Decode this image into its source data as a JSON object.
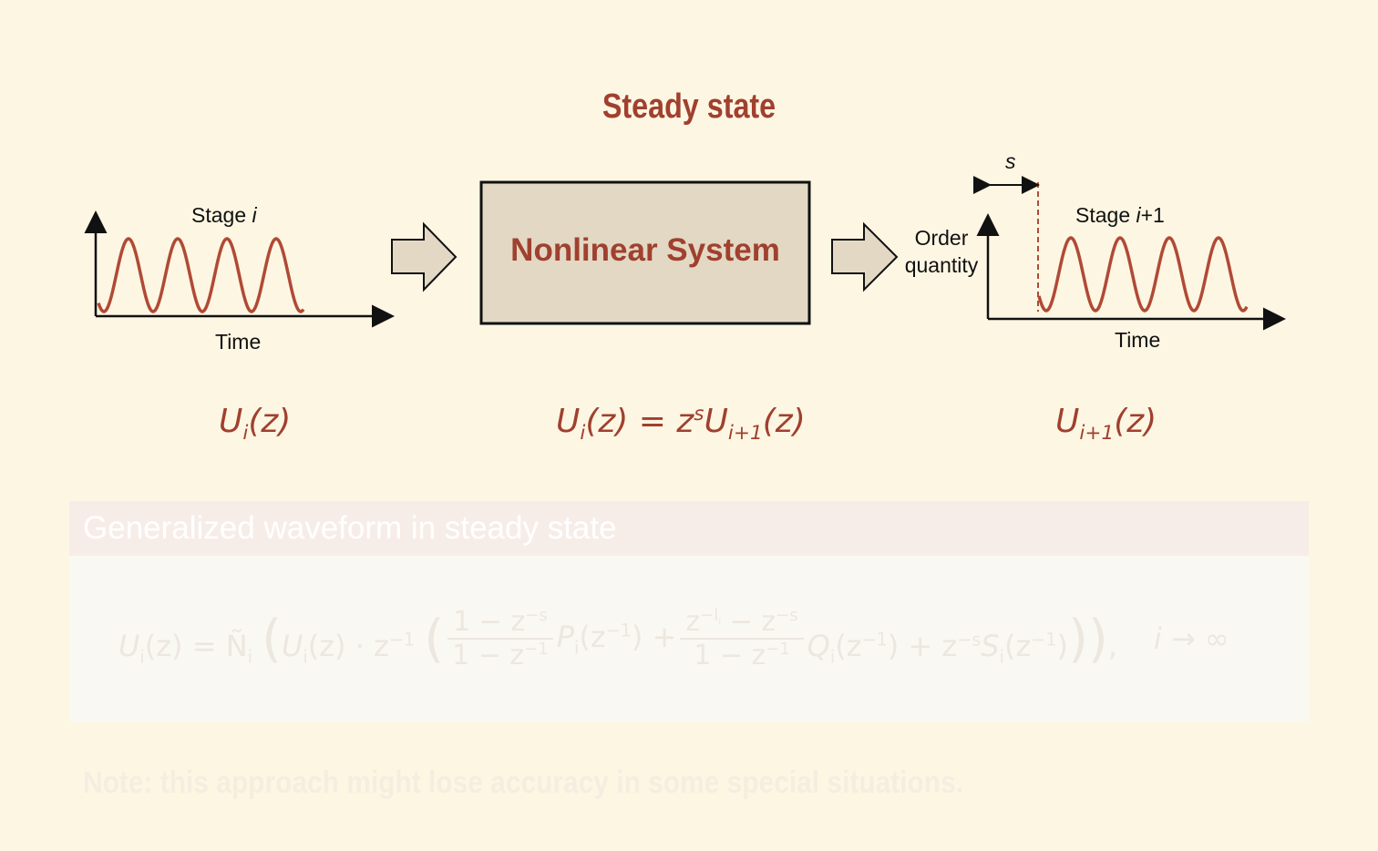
{
  "title": "Steady state",
  "left_stage": {
    "label": [
      "Stage ",
      "i"
    ],
    "axis": "Time"
  },
  "system": "Nonlinear System",
  "right_stage": {
    "label": [
      "Stage ",
      "i",
      "+1"
    ],
    "axis": "Time",
    "y_axis": [
      "Order",
      "quantity"
    ],
    "shift": "s"
  },
  "formulas": {
    "left": [
      "U",
      "i",
      "(z)"
    ],
    "middle": [
      "U",
      "i",
      "(z) = z",
      "s",
      "U",
      "i+1",
      "(z)"
    ],
    "right": [
      "U",
      "i+1",
      "(z)"
    ]
  },
  "panel": {
    "heading": "Generalized waveform in steady state",
    "formula": {
      "lhs": [
        "U",
        "i",
        "(z) = Ñ",
        "i",
        "(",
        "U",
        "i",
        "(z) · z",
        "−1",
        "("
      ],
      "frac1": {
        "num": [
          "1 − z",
          "−s"
        ],
        "den": [
          "1 − z",
          "−1"
        ]
      },
      "mid1": [
        "P",
        "i",
        "(z",
        "−1",
        ") +"
      ],
      "frac2": {
        "num": [
          "z",
          "−l",
          "i",
          " − z",
          "−s"
        ],
        "den": [
          "1 − z",
          "−1"
        ]
      },
      "mid2": [
        "Q",
        "i",
        "(z",
        "−1",
        ") + z",
        "−s",
        "S",
        "i",
        "(z",
        "−1",
        ")",
        "))",
        ","
      ],
      "limit": "i → ∞"
    }
  },
  "note": "Note: this approach might lose accuracy in some special situations."
}
